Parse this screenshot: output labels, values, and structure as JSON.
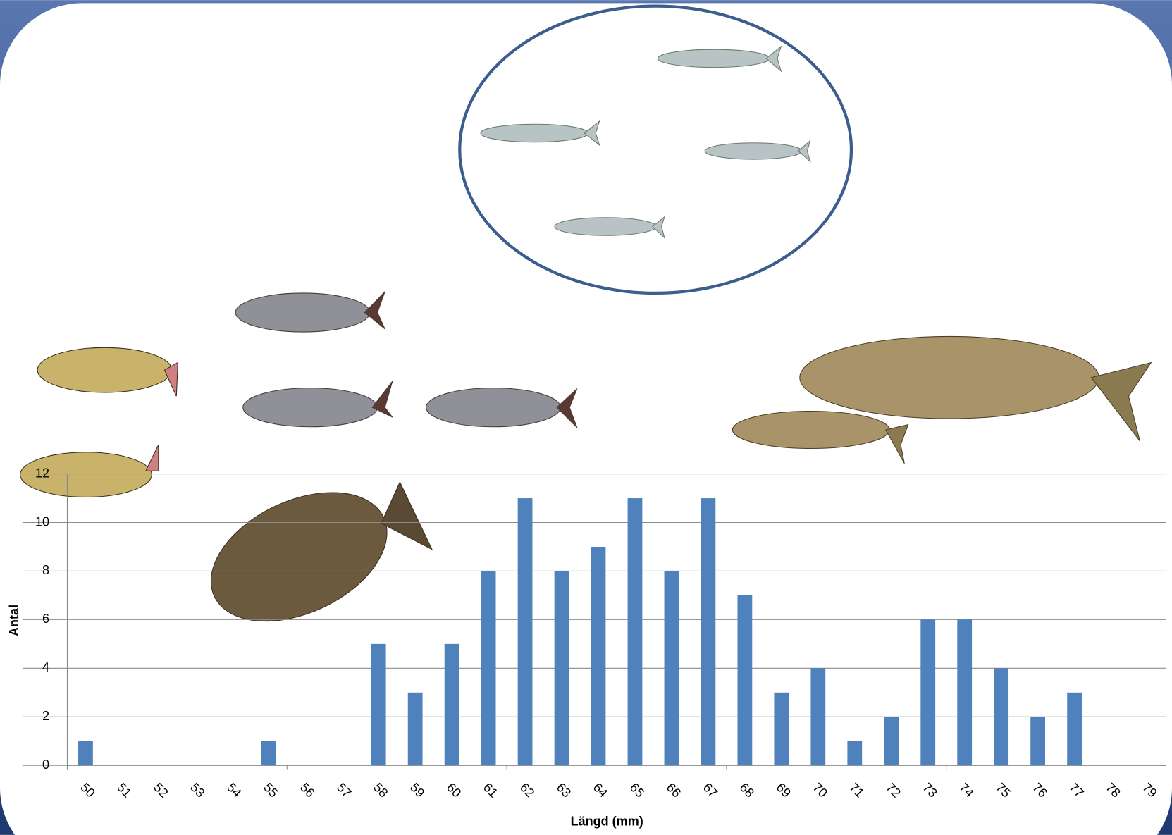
{
  "chart_data": {
    "type": "bar",
    "x_label": "Längd (mm)",
    "y_label": "Antal",
    "categories": [
      "50",
      "51",
      "52",
      "53",
      "54",
      "55",
      "56",
      "57",
      "58",
      "59",
      "60",
      "61",
      "62",
      "63",
      "64",
      "65",
      "66",
      "67",
      "68",
      "69",
      "70",
      "71",
      "72",
      "73",
      "74",
      "75",
      "76",
      "77",
      "78",
      "79"
    ],
    "values": [
      1,
      0,
      0,
      0,
      0,
      1,
      0,
      0,
      5,
      3,
      5,
      8,
      11,
      8,
      9,
      11,
      8,
      11,
      7,
      3,
      4,
      1,
      2,
      6,
      6,
      4,
      2,
      3,
      0,
      0
    ],
    "color": "#4f81bd",
    "ylim": [
      0,
      12
    ],
    "yticks": [
      0,
      2,
      4,
      6,
      8,
      10,
      12
    ],
    "grid": true
  }
}
